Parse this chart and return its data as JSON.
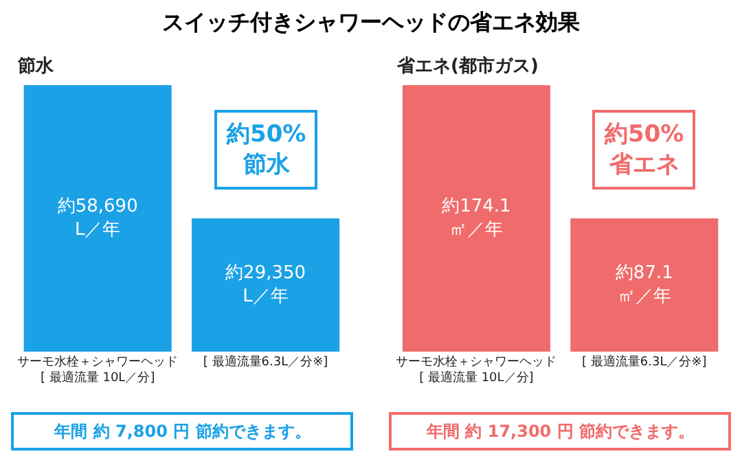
{
  "chart_data": [
    {
      "type": "bar",
      "title": "スイッチ付きシャワーヘッドの省エネ効果",
      "subtitle": "節水",
      "categories": [
        "サーモ水栓＋シャワーヘッド\n[ 最適流量 10L／分]",
        "[ 最適流量6.3L／分※]"
      ],
      "values": [
        58690,
        29350
      ],
      "color": "#1ba1e6",
      "value_labels": [
        "約58,690\nL／年",
        "約29,350\nL／年"
      ],
      "annotations": [
        "約50%\n節水",
        "年間 約 7,800 円 節約できます。"
      ]
    },
    {
      "type": "bar",
      "subtitle": "省エネ(都市ガス)",
      "categories": [
        "サーモ水栓＋シャワーヘッド\n[ 最適流量 10L／分]",
        "[ 最適流量6.3L／分※]"
      ],
      "values": [
        174.1,
        87.1
      ],
      "color": "#f06b6b",
      "value_labels": [
        "約174.1\n㎡／年",
        "約87.1\n㎡／年"
      ],
      "annotations": [
        "約50%\n省エネ",
        "年間 約 17,300 円 節約できます。"
      ]
    }
  ]
}
